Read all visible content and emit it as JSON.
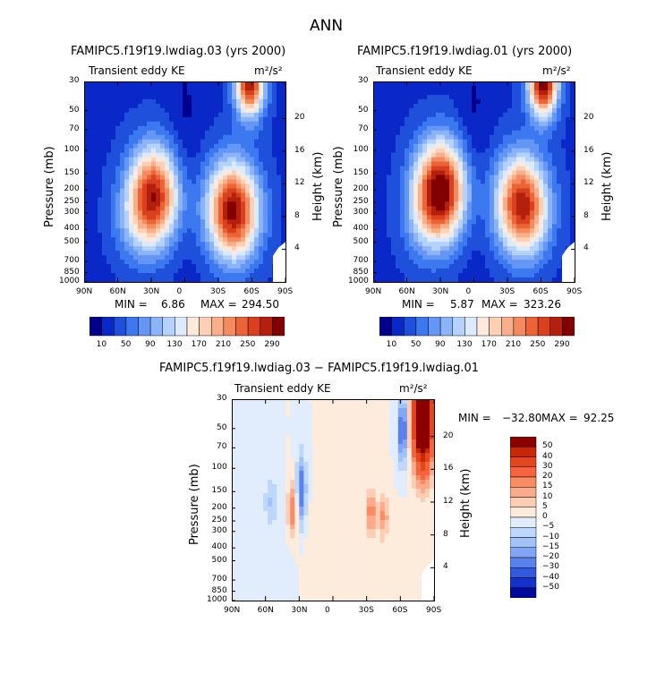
{
  "page": {
    "title": "ANN"
  },
  "chart_data": [
    {
      "type": "heatmap",
      "title": "FAMIPC5.f19f19.lwdiag.03 (yrs 2000)",
      "subtitle": "Transient eddy KE",
      "units": "m²/s²",
      "xlabel": "",
      "ylabel": "Pressure (mb)",
      "y2label": "Height (km)",
      "x_ticks": [
        "90N",
        "60N",
        "30N",
        "0",
        "30S",
        "60S",
        "90S"
      ],
      "y_ticks": [
        "30",
        "50",
        "70",
        "100",
        "150",
        "200",
        "250",
        "300",
        "400",
        "500",
        "700",
        "850",
        "1000"
      ],
      "y2_ticks": [
        "20",
        "16",
        "12",
        "8",
        "4"
      ],
      "min_label": "MIN =",
      "min_value": "6.86",
      "max_label": "MAX =",
      "max_value": "294.50",
      "colorbar_labels": [
        "10",
        "50",
        "90",
        "130",
        "170",
        "210",
        "250",
        "290"
      ],
      "colors": [
        "#00008c",
        "#0a28c8",
        "#1e50dc",
        "#3c78f0",
        "#6496f5",
        "#8cb4fa",
        "#b4d2fc",
        "#dceafe",
        "#fdeadc",
        "#fcd0b4",
        "#f9b08a",
        "#f48a5e",
        "#ec6436",
        "#d8401e",
        "#b4200c",
        "#820000"
      ],
      "jets": [
        {
          "lat": 28,
          "p": 220,
          "peak": 280
        },
        {
          "lat": -42,
          "p": 280,
          "peak": 270
        },
        {
          "lat": -58,
          "p": 30,
          "peak": 294
        }
      ]
    },
    {
      "type": "heatmap",
      "title": "FAMIPC5.f19f19.lwdiag.01 (yrs 2000)",
      "subtitle": "Transient eddy KE",
      "units": "m²/s²",
      "xlabel": "",
      "ylabel": "Pressure (mb)",
      "y2label": "Height (km)",
      "x_ticks": [
        "90N",
        "60N",
        "30N",
        "0",
        "30S",
        "60S",
        "90S"
      ],
      "y_ticks": [
        "30",
        "50",
        "70",
        "100",
        "150",
        "200",
        "250",
        "300",
        "400",
        "500",
        "700",
        "850",
        "1000"
      ],
      "y2_ticks": [
        "20",
        "16",
        "12",
        "8",
        "4"
      ],
      "min_label": "MIN =",
      "min_value": "5.87",
      "max_label": "MAX =",
      "max_value": "323.26",
      "colorbar_labels": [
        "10",
        "50",
        "90",
        "130",
        "170",
        "210",
        "250",
        "290"
      ],
      "colors": [
        "#00008c",
        "#0a28c8",
        "#1e50dc",
        "#3c78f0",
        "#6496f5",
        "#8cb4fa",
        "#b4d2fc",
        "#dceafe",
        "#fdeadc",
        "#fcd0b4",
        "#f9b08a",
        "#f48a5e",
        "#ec6436",
        "#d8401e",
        "#b4200c",
        "#820000"
      ],
      "jets": [
        {
          "lat": 30,
          "p": 200,
          "peak": 320
        },
        {
          "lat": -42,
          "p": 250,
          "peak": 260
        },
        {
          "lat": -62,
          "p": 30,
          "peak": 323
        }
      ]
    },
    {
      "type": "heatmap",
      "title": "FAMIPC5.f19f19.lwdiag.03 − FAMIPC5.f19f19.lwdiag.01",
      "subtitle": "Transient eddy KE",
      "units": "m²/s²",
      "xlabel": "",
      "ylabel": "Pressure (mb)",
      "y2label": "Height (km)",
      "x_ticks": [
        "90N",
        "60N",
        "30N",
        "0",
        "30S",
        "60S",
        "90S"
      ],
      "y_ticks": [
        "30",
        "50",
        "70",
        "100",
        "150",
        "200",
        "250",
        "300",
        "400",
        "500",
        "700",
        "850",
        "1000"
      ],
      "y2_ticks": [
        "20",
        "16",
        "12",
        "8",
        "4"
      ],
      "min_label": "MIN =",
      "min_value": "−32.80",
      "max_label": "MAX =",
      "max_value": "92.25",
      "colorbar_labels": [
        "50",
        "40",
        "30",
        "20",
        "15",
        "10",
        "5",
        "0",
        "−5",
        "−10",
        "−15",
        "−20",
        "−30",
        "−40",
        "−50"
      ],
      "colors": [
        "#8c0000",
        "#c8280a",
        "#e6461e",
        "#f5643c",
        "#fa8c64",
        "#fcaa8c",
        "#fdcdb4",
        "#fdebdc",
        "#e1ecfc",
        "#bed7fc",
        "#a0c3fa",
        "#82a5f5",
        "#5a82ec",
        "#325ae1",
        "#1432c8",
        "#000a9b"
      ]
    }
  ]
}
